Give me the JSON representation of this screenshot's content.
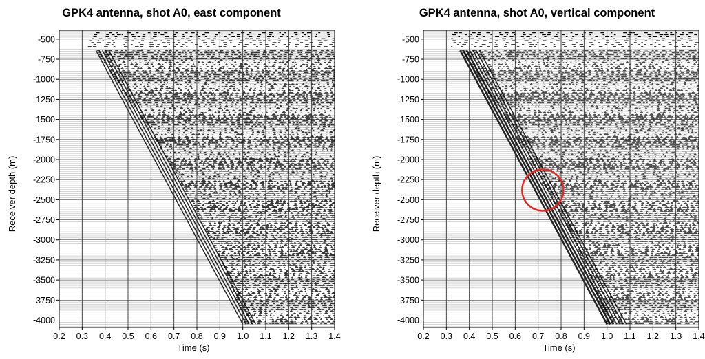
{
  "chart_data": [
    {
      "type": "heatmap",
      "title": "GPK4 antenna, shot A0, east component",
      "xlabel": "Time (s)",
      "ylabel": "Receiver depth (m)",
      "xlim": [
        0.2,
        1.4
      ],
      "ylim": [
        -4090,
        -390
      ],
      "x_ticks": [
        0.2,
        0.3,
        0.4,
        0.5,
        0.6,
        0.7,
        0.8,
        0.9,
        1.0,
        1.1,
        1.2,
        1.3,
        1.4
      ],
      "y_ticks": [
        -500,
        -750,
        -1000,
        -1250,
        -1500,
        -1750,
        -2000,
        -2250,
        -2500,
        -2750,
        -3000,
        -3250,
        -3500,
        -3750,
        -4000
      ],
      "grid": true,
      "first_arrival": {
        "depth": [
          -400,
          -500,
          -640,
          -1000,
          -1500,
          -2000,
          -2500,
          -3000,
          -3500,
          -4050
        ],
        "time": [
          0.31,
          0.34,
          0.35,
          0.43,
          0.55,
          0.66,
          0.76,
          0.85,
          0.93,
          1.0
        ]
      },
      "direct_wave_band": {
        "depth": [
          -640,
          -4050
        ],
        "time": [
          0.36,
          1.0
        ]
      }
    },
    {
      "type": "heatmap",
      "title": "GPK4 antenna, shot A0, vertical component",
      "xlabel": "Time (s)",
      "ylabel": "Receiver depth (m)",
      "xlim": [
        0.2,
        1.4
      ],
      "ylim": [
        -4090,
        -390
      ],
      "x_ticks": [
        0.2,
        0.3,
        0.4,
        0.5,
        0.6,
        0.7,
        0.8,
        0.9,
        1.0,
        1.1,
        1.2,
        1.3,
        1.4
      ],
      "y_ticks": [
        -500,
        -750,
        -1000,
        -1250,
        -1500,
        -1750,
        -2000,
        -2250,
        -2500,
        -2750,
        -3000,
        -3250,
        -3500,
        -3750,
        -4000
      ],
      "grid": true,
      "first_arrival": {
        "depth": [
          -400,
          -500,
          -640,
          -1000,
          -1500,
          -2000,
          -2500,
          -3000,
          -3500,
          -4050
        ],
        "time": [
          0.31,
          0.34,
          0.35,
          0.43,
          0.55,
          0.65,
          0.75,
          0.84,
          0.92,
          0.99
        ]
      },
      "direct_wave_band": {
        "depth": [
          -640,
          -4050
        ],
        "time": [
          0.36,
          1.0
        ]
      },
      "annotation": {
        "shape": "circle",
        "color": "#e8261f",
        "center": {
          "time": 0.72,
          "depth": -2380
        },
        "radius_time": 0.09
      }
    }
  ],
  "colors": {
    "ink": "#000000",
    "trace_line": "#bdbdbd",
    "grid": "#333333",
    "annotation": "#e8261f"
  }
}
